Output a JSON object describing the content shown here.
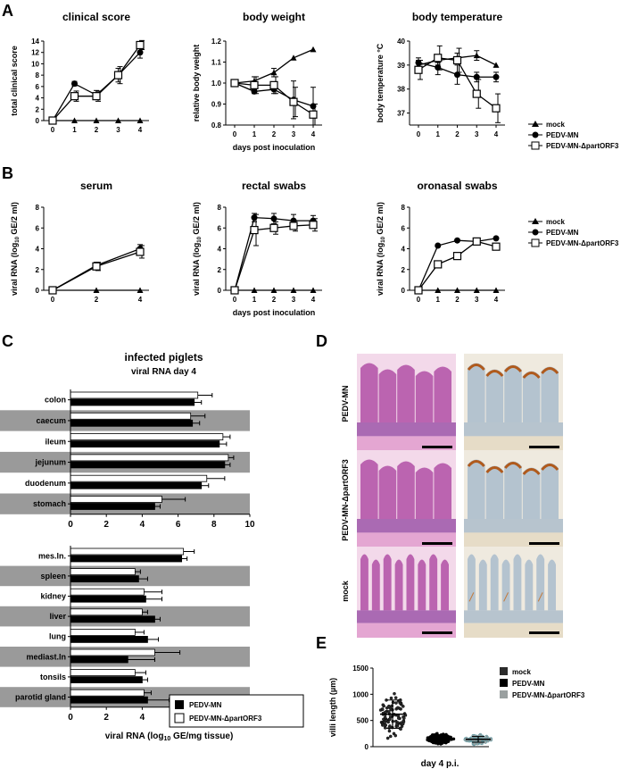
{
  "figure": {
    "panels": {
      "A": "A",
      "B": "B",
      "C": "C",
      "D": "D",
      "E": "E"
    },
    "legend_mock": "mock",
    "legend_mn": "PEDV-MN",
    "legend_d": "PEDV-MN-ΔpartORF3",
    "days_label_A": "days post inoculation",
    "days_label_B": "days post inoculation"
  },
  "chart_data": [
    {
      "id": "A1",
      "type": "line",
      "title": "clinical score",
      "ylabel": "total clinical score",
      "xlabel": "",
      "x": [
        0,
        1,
        2,
        3,
        4
      ],
      "ylim": [
        0,
        14
      ],
      "yticks": [
        0,
        2,
        4,
        6,
        8,
        10,
        12,
        14
      ],
      "series": [
        {
          "name": "mock",
          "marker": "triangle",
          "values": [
            0,
            0,
            0,
            0,
            0
          ],
          "err": [
            0,
            0,
            0,
            0,
            0
          ]
        },
        {
          "name": "PEDV-MN",
          "marker": "circle",
          "values": [
            0,
            6.5,
            4.5,
            8,
            12
          ],
          "err": [
            0,
            0.4,
            0.8,
            1.2,
            1.0
          ]
        },
        {
          "name": "PEDV-MN-ΔpartORF3",
          "marker": "square",
          "values": [
            0,
            4.3,
            4.3,
            8,
            13.3
          ],
          "err": [
            0,
            0.9,
            0.9,
            1.5,
            0.8
          ]
        }
      ]
    },
    {
      "id": "A2",
      "type": "line",
      "title": "body weight",
      "ylabel": "relative body weight",
      "xlabel": "days post inoculation",
      "x": [
        0,
        1,
        2,
        3,
        4
      ],
      "ylim": [
        0.8,
        1.2
      ],
      "yticks": [
        0.8,
        0.9,
        1.0,
        1.1,
        1.2
      ],
      "series": [
        {
          "name": "mock",
          "marker": "triangle",
          "values": [
            1.0,
            1.01,
            1.05,
            1.12,
            1.16
          ],
          "err": [
            0,
            0.02,
            0.02,
            0,
            0
          ]
        },
        {
          "name": "PEDV-MN",
          "marker": "circle",
          "values": [
            1.0,
            0.96,
            0.97,
            0.92,
            0.89
          ],
          "err": [
            0,
            0.01,
            0.02,
            0.09,
            0.09
          ]
        },
        {
          "name": "PEDV-MN-ΔpartORF3",
          "marker": "square",
          "values": [
            1.0,
            0.99,
            0.99,
            0.91,
            0.85
          ],
          "err": [
            0,
            0.04,
            0.04,
            0.07,
            0.05
          ]
        }
      ]
    },
    {
      "id": "A3",
      "type": "line",
      "title": "body temperature",
      "ylabel": "body temperature °C",
      "xlabel": "",
      "x": [
        0,
        1,
        2,
        3,
        4
      ],
      "ylim": [
        36.5,
        40
      ],
      "yticks": [
        37,
        38,
        39,
        40
      ],
      "series": [
        {
          "name": "mock",
          "marker": "triangle",
          "values": [
            39.0,
            39.2,
            39.3,
            39.4,
            39.0
          ],
          "err": [
            0.2,
            0.2,
            0.2,
            0.2,
            0
          ]
        },
        {
          "name": "PEDV-MN",
          "marker": "circle",
          "values": [
            39.1,
            38.9,
            38.6,
            38.5,
            38.5
          ],
          "err": [
            0.2,
            0.3,
            0.4,
            0.2,
            0.2
          ]
        },
        {
          "name": "PEDV-MN-ΔpartORF3",
          "marker": "square",
          "values": [
            38.8,
            39.3,
            39.2,
            37.8,
            37.2
          ],
          "err": [
            0.4,
            0.5,
            0.5,
            0.6,
            0.6
          ]
        }
      ]
    },
    {
      "id": "B1",
      "type": "line",
      "title": "serum",
      "ylabel": "viral RNA (log10 GE/2 ml)",
      "xlabel": "",
      "x": [
        0,
        2,
        4
      ],
      "ylim": [
        0,
        8
      ],
      "yticks": [
        0,
        2,
        4,
        6,
        8
      ],
      "series": [
        {
          "name": "mock",
          "marker": "triangle",
          "values": [
            0,
            0,
            0
          ],
          "err": [
            0,
            0,
            0
          ]
        },
        {
          "name": "PEDV-MN",
          "marker": "circle",
          "values": [
            0,
            2.4,
            4.0
          ],
          "err": [
            0,
            0.3,
            0.4
          ]
        },
        {
          "name": "PEDV-MN-ΔpartORF3",
          "marker": "square",
          "values": [
            0,
            2.3,
            3.7
          ],
          "err": [
            0,
            0.4,
            0.6
          ]
        }
      ]
    },
    {
      "id": "B2",
      "type": "line",
      "title": "rectal swabs",
      "ylabel": "viral RNA (log10 GE/2 ml)",
      "xlabel": "days post inoculation",
      "x": [
        0,
        1,
        2,
        3,
        4
      ],
      "ylim": [
        0,
        8
      ],
      "yticks": [
        0,
        2,
        4,
        6,
        8
      ],
      "series": [
        {
          "name": "mock",
          "marker": "triangle",
          "values": [
            0,
            0,
            0,
            0,
            0
          ],
          "err": [
            0,
            0,
            0,
            0,
            0
          ]
        },
        {
          "name": "PEDV-MN",
          "marker": "circle",
          "values": [
            0,
            7.0,
            6.9,
            6.7,
            6.7
          ],
          "err": [
            0,
            0.4,
            0.5,
            0.6,
            0.5
          ]
        },
        {
          "name": "PEDV-MN-ΔpartORF3",
          "marker": "square",
          "values": [
            0,
            5.8,
            6.0,
            6.2,
            6.3
          ],
          "err": [
            0,
            1.5,
            0.6,
            0.5,
            0.6
          ]
        }
      ]
    },
    {
      "id": "B3",
      "type": "line",
      "title": "oronasal swabs",
      "ylabel": "viral RNA (log10 GE/2 ml)",
      "xlabel": "",
      "x": [
        0,
        1,
        2,
        3,
        4
      ],
      "ylim": [
        0,
        8
      ],
      "yticks": [
        0,
        2,
        4,
        6,
        8
      ],
      "series": [
        {
          "name": "mock",
          "marker": "triangle",
          "values": [
            0,
            0,
            0,
            0,
            0
          ],
          "err": [
            0,
            0,
            0,
            0,
            0
          ]
        },
        {
          "name": "PEDV-MN",
          "marker": "circle",
          "values": [
            0,
            4.3,
            4.8,
            4.7,
            5.0
          ],
          "err": [
            0,
            0,
            0,
            0,
            0
          ]
        },
        {
          "name": "PEDV-MN-ΔpartORF3",
          "marker": "square",
          "values": [
            0,
            2.5,
            3.3,
            4.7,
            4.2
          ],
          "err": [
            0,
            0,
            0,
            0,
            0
          ]
        }
      ]
    },
    {
      "id": "C1",
      "type": "bar",
      "orientation": "horizontal",
      "title": "infected piglets",
      "subtitle": "viral RNA day 4",
      "xlim": [
        0,
        10
      ],
      "xticks": [
        0,
        2,
        4,
        6,
        8,
        10
      ],
      "categories": [
        "colon",
        "caecum",
        "ileum",
        "jejunum",
        "duodenum",
        "stomach"
      ],
      "shaded": [
        false,
        true,
        false,
        true,
        false,
        true
      ],
      "series": [
        {
          "name": "PEDV-MN-ΔpartORF3",
          "fill": "#ffffff",
          "values": [
            7.1,
            6.7,
            8.5,
            8.8,
            7.6,
            5.1
          ],
          "err": [
            0.8,
            0.8,
            0.4,
            0.3,
            1.0,
            1.3
          ]
        },
        {
          "name": "PEDV-MN",
          "fill": "#000000",
          "values": [
            6.9,
            6.8,
            8.3,
            8.6,
            7.3,
            4.7
          ],
          "err": [
            0.4,
            0.4,
            0.4,
            0.3,
            0.4,
            0.3
          ]
        }
      ]
    },
    {
      "id": "C2",
      "type": "bar",
      "orientation": "horizontal",
      "xlabel": "viral RNA (log10 GE/mg tissue)",
      "xlim": [
        0,
        10
      ],
      "xticks": [
        0,
        2,
        4,
        6,
        8,
        10
      ],
      "categories": [
        "mes.ln.",
        "spleen",
        "kidney",
        "liver",
        "lung",
        "mediast.ln",
        "tonsils",
        "parotid gland"
      ],
      "shaded": [
        false,
        true,
        false,
        true,
        false,
        true,
        false,
        true
      ],
      "series": [
        {
          "name": "PEDV-MN-ΔpartORF3",
          "fill": "#ffffff",
          "values": [
            6.3,
            3.6,
            4.1,
            4.0,
            3.6,
            4.7,
            3.6,
            4.1
          ],
          "err": [
            0.6,
            0.3,
            1.0,
            0.3,
            0.5,
            1.4,
            0.6,
            0.4
          ]
        },
        {
          "name": "PEDV-MN",
          "fill": "#000000",
          "values": [
            6.2,
            3.8,
            4.2,
            4.7,
            4.3,
            3.2,
            4.0,
            4.3
          ],
          "err": [
            0.3,
            0.5,
            0.9,
            0.3,
            0.6,
            1.5,
            0.3,
            1.2
          ]
        }
      ]
    },
    {
      "id": "E",
      "type": "scatter",
      "ylabel": "villi length (µm)",
      "xlabel": "day 4 p.i.",
      "ylim": [
        0,
        1500
      ],
      "yticks": [
        0,
        500,
        1000,
        1500
      ],
      "groups": [
        {
          "name": "mock",
          "color": "#2b2b2b",
          "mean": 620,
          "sd": 270,
          "min": 150,
          "max": 1340,
          "n": 90
        },
        {
          "name": "PEDV-MN",
          "color": "#000000",
          "mean": 150,
          "sd": 60,
          "min": 40,
          "max": 310,
          "n": 160
        },
        {
          "name": "PEDV-MN-ΔpartORF3",
          "color": "#9aa0a0",
          "mean": 140,
          "sd": 55,
          "min": 40,
          "max": 330,
          "n": 80
        }
      ]
    }
  ],
  "panel_d": {
    "rows": [
      "PEDV-MN",
      "PEDV-MN-ΔpartORF3",
      "mock"
    ]
  }
}
